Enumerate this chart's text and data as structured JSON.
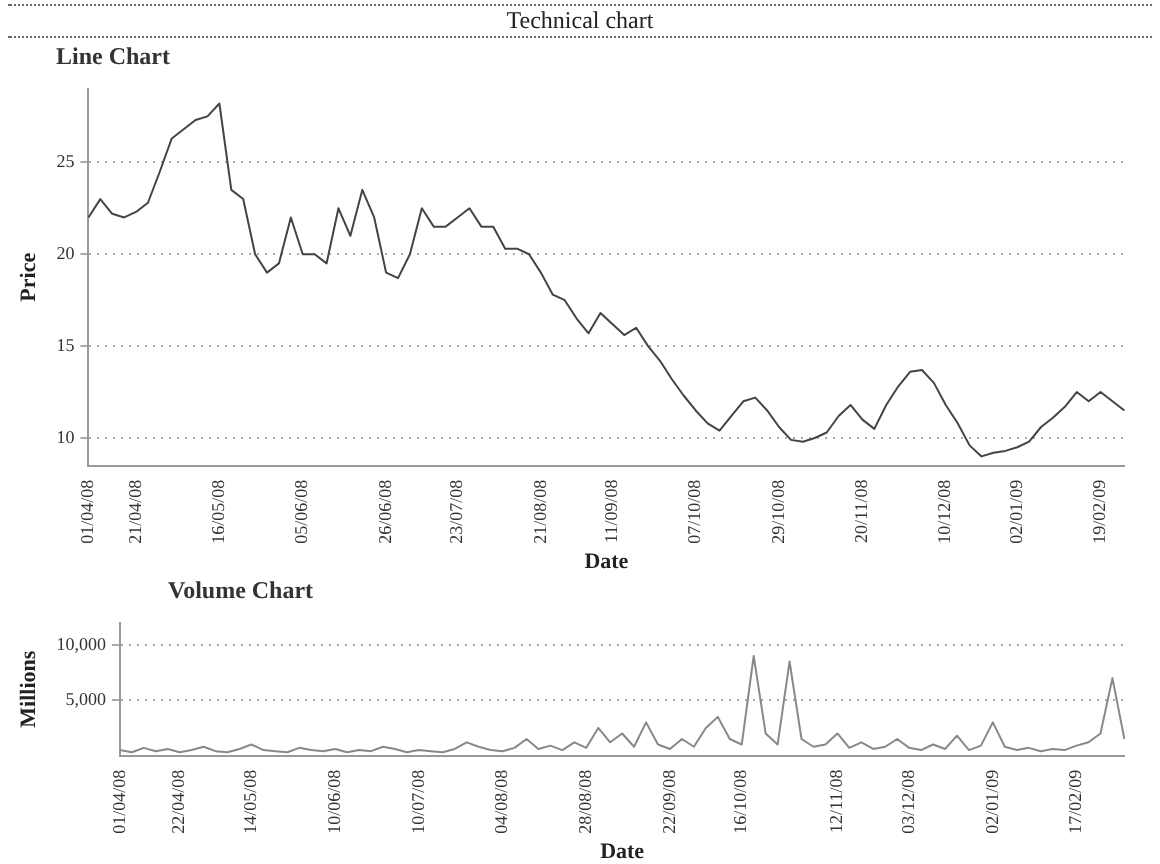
{
  "chart_data": [
    {
      "type": "line",
      "title": "Technical chart",
      "subtitle": "Line Chart",
      "xlabel": "Date",
      "ylabel": "Price",
      "color": "#444444",
      "grid": "y",
      "ylim": [
        8.5,
        29
      ],
      "yticks": [
        10,
        15,
        20,
        25
      ],
      "categories": [
        "01/04/08",
        null,
        null,
        null,
        "21/04/08",
        null,
        null,
        null,
        null,
        null,
        null,
        "16/05/08",
        null,
        null,
        null,
        null,
        null,
        null,
        "05/06/08",
        null,
        null,
        null,
        null,
        null,
        null,
        "26/06/08",
        null,
        null,
        null,
        null,
        null,
        "23/07/08",
        null,
        null,
        null,
        null,
        null,
        null,
        "21/08/08",
        null,
        null,
        null,
        null,
        null,
        "11/09/08",
        null,
        null,
        null,
        null,
        null,
        null,
        "07/10/08",
        null,
        null,
        null,
        null,
        null,
        null,
        "29/10/08",
        null,
        null,
        null,
        null,
        null,
        null,
        "20/11/08",
        null,
        null,
        null,
        null,
        null,
        null,
        "10/12/08",
        null,
        null,
        null,
        null,
        null,
        "02/01/09",
        null,
        null,
        null,
        null,
        null,
        null,
        "19/02/09",
        null,
        null
      ],
      "values": [
        22,
        23,
        22.2,
        22,
        22.3,
        22.8,
        24.5,
        26.3,
        26.8,
        27.3,
        27.5,
        28.2,
        23.5,
        23,
        20,
        19,
        19.5,
        22,
        20,
        20,
        19.5,
        22.5,
        21,
        23.5,
        22,
        19,
        18.7,
        20,
        22.5,
        21.5,
        21.5,
        22,
        22.5,
        21.5,
        21.5,
        20.3,
        20.3,
        20,
        19,
        17.8,
        17.5,
        16.5,
        15.7,
        16.8,
        16.2,
        15.6,
        16,
        15,
        14.2,
        13.2,
        12.3,
        11.5,
        10.8,
        10.4,
        11.2,
        12,
        12.2,
        11.5,
        10.6,
        9.9,
        9.8,
        10,
        10.3,
        11.2,
        11.8,
        11,
        10.5,
        11.8,
        12.8,
        13.6,
        13.7,
        13,
        11.8,
        10.8,
        9.6,
        9,
        9.2,
        9.3,
        9.5,
        9.8,
        10.6,
        11.1,
        11.7,
        12.5,
        12,
        12.5,
        12,
        11.5
      ]
    },
    {
      "type": "line",
      "title": "Volume Chart",
      "xlabel": "Date",
      "ylabel": "Millions",
      "color": "#888888",
      "grid": "y",
      "ylim": [
        0,
        12000
      ],
      "yticks": [
        {
          "value": 5000,
          "label": "5,000"
        },
        {
          "value": 10000,
          "label": "10,000"
        }
      ],
      "categories": [
        "01/04/08",
        null,
        null,
        null,
        null,
        "22/04/08",
        null,
        null,
        null,
        null,
        null,
        "14/05/08",
        null,
        null,
        null,
        null,
        null,
        null,
        "10/06/08",
        null,
        null,
        null,
        null,
        null,
        null,
        "10/07/08",
        null,
        null,
        null,
        null,
        null,
        null,
        "04/08/08",
        null,
        null,
        null,
        null,
        null,
        null,
        "28/08/08",
        null,
        null,
        null,
        null,
        null,
        null,
        "22/09/08",
        null,
        null,
        null,
        null,
        null,
        "16/10/08",
        null,
        null,
        null,
        null,
        null,
        null,
        null,
        "12/11/08",
        null,
        null,
        null,
        null,
        null,
        "03/12/08",
        null,
        null,
        null,
        null,
        null,
        null,
        "02/01/09",
        null,
        null,
        null,
        null,
        null,
        null,
        "17/02/09",
        null,
        null,
        null,
        null
      ],
      "values": [
        500,
        300,
        700,
        400,
        600,
        300,
        500,
        800,
        400,
        300,
        600,
        1000,
        500,
        400,
        300,
        700,
        500,
        400,
        600,
        300,
        500,
        400,
        800,
        600,
        300,
        500,
        400,
        300,
        600,
        1200,
        800,
        500,
        400,
        700,
        1500,
        600,
        900,
        500,
        1200,
        700,
        2500,
        1200,
        2000,
        800,
        3000,
        1000,
        600,
        1500,
        800,
        2500,
        3500,
        1500,
        1000,
        9000,
        2000,
        1000,
        8500,
        1500,
        800,
        1000,
        2000,
        700,
        1200,
        600,
        800,
        1500,
        700,
        500,
        1000,
        600,
        1800,
        500,
        900,
        3000,
        800,
        500,
        700,
        400,
        600,
        500,
        900,
        1200,
        2000,
        7000,
        1500
      ]
    }
  ]
}
